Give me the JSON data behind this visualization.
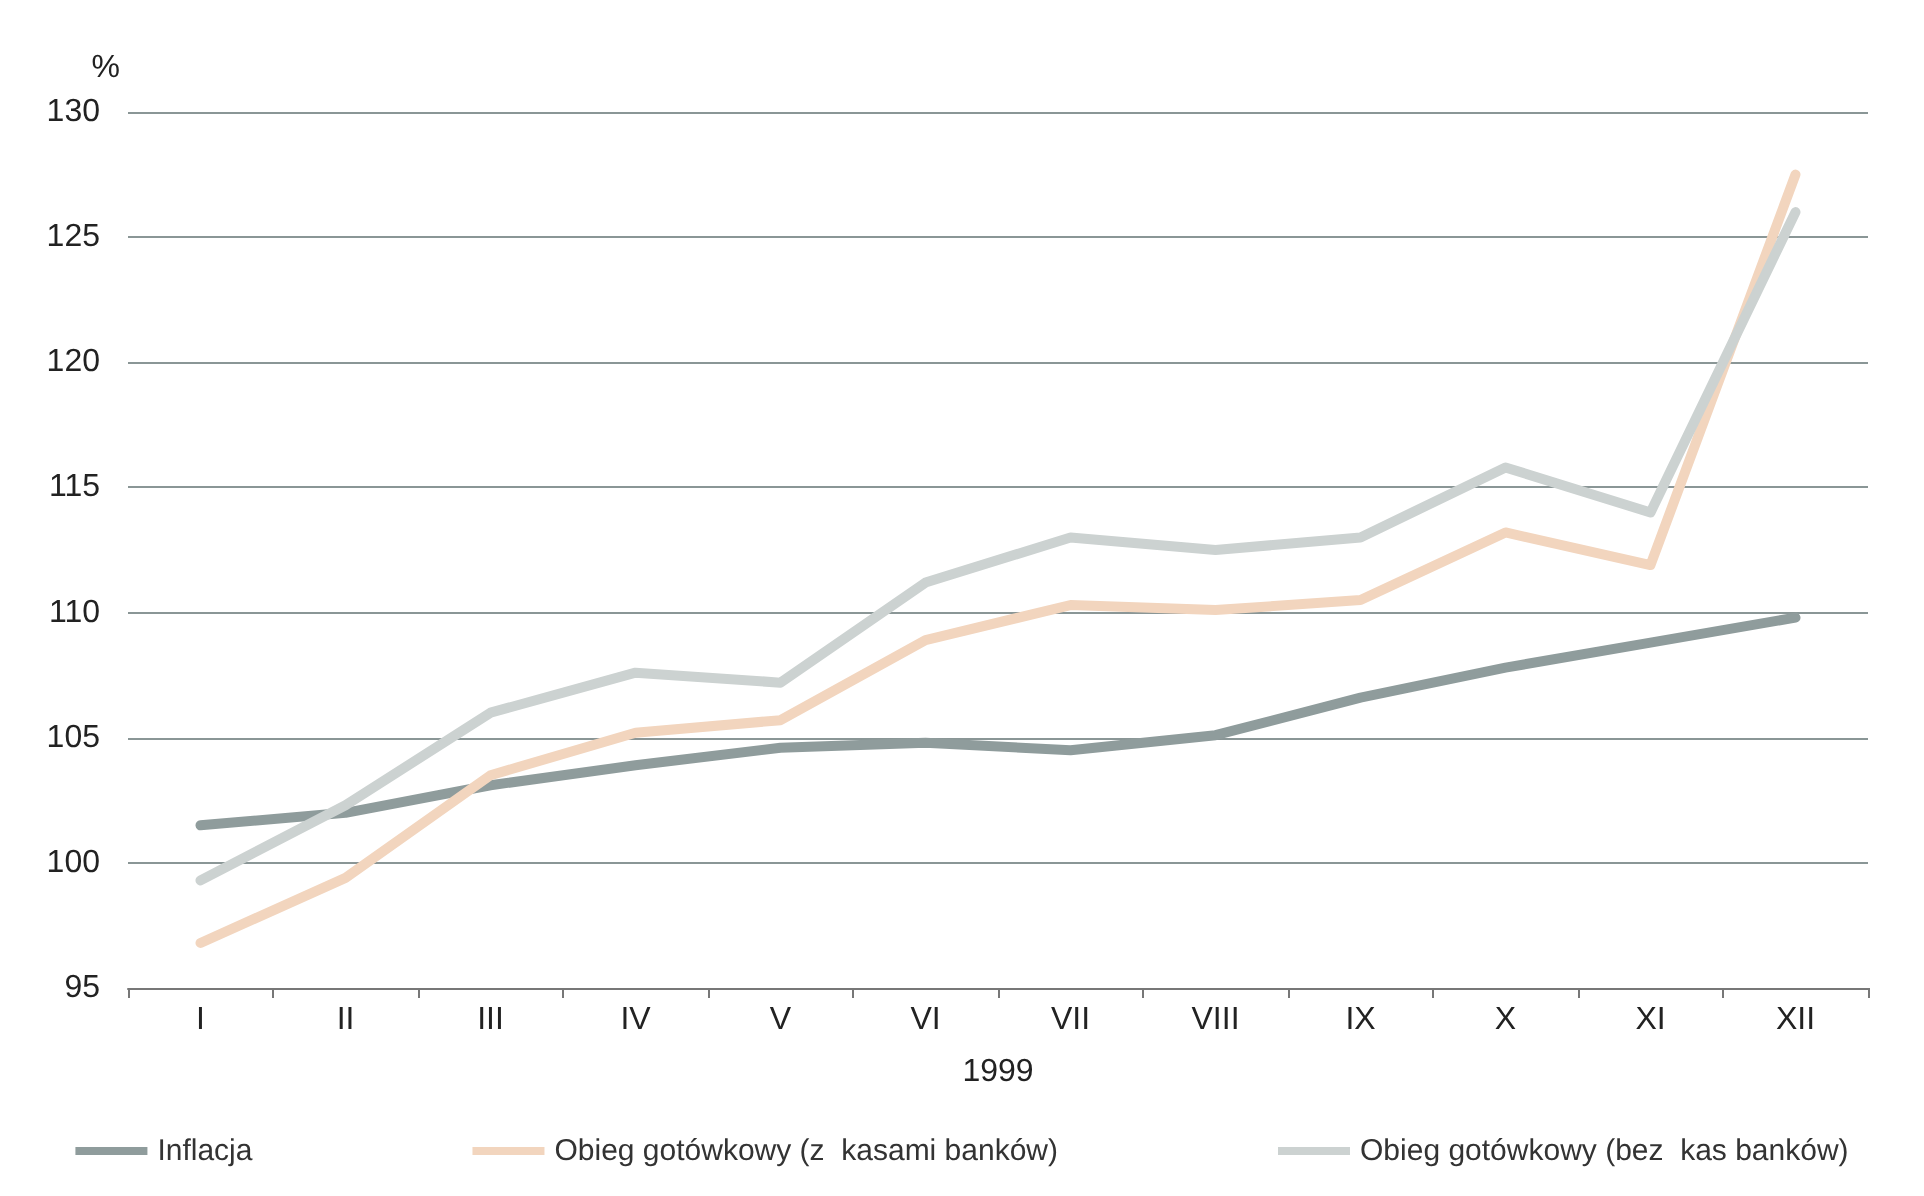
{
  "chart_data": {
    "type": "line",
    "ylabel": "%",
    "xlabel": "1999",
    "categories": [
      "I",
      "II",
      "III",
      "IV",
      "V",
      "VI",
      "VII",
      "VIII",
      "IX",
      "X",
      "XI",
      "XII"
    ],
    "series": [
      {
        "name": "Inflacja",
        "color": "#8f9c9c",
        "values": [
          101.5,
          102,
          103.1,
          103.9,
          104.6,
          104.8,
          104.5,
          105.1,
          106.6,
          107.8,
          108.8,
          109.8
        ]
      },
      {
        "name": "Obieg gotówkowy (z  kasami banków)",
        "color": "#f2d5be",
        "values": [
          96.8,
          99.4,
          103.5,
          105.2,
          105.7,
          108.9,
          110.3,
          110.1,
          110.5,
          113.2,
          111.9,
          127.5
        ]
      },
      {
        "name": "Obieg gotówkowy (bez  kas banków)",
        "color": "#ccd2d1",
        "values": [
          99.3,
          102.3,
          106,
          107.6,
          107.2,
          111.2,
          113,
          112.5,
          113,
          115.8,
          114,
          126
        ]
      }
    ],
    "ylim": [
      95,
      130
    ],
    "yticks": [
      95,
      100,
      105,
      110,
      115,
      120,
      125,
      130
    ],
    "grid": "y",
    "legend": "bottom",
    "marker": "none",
    "line_style": "solid"
  }
}
